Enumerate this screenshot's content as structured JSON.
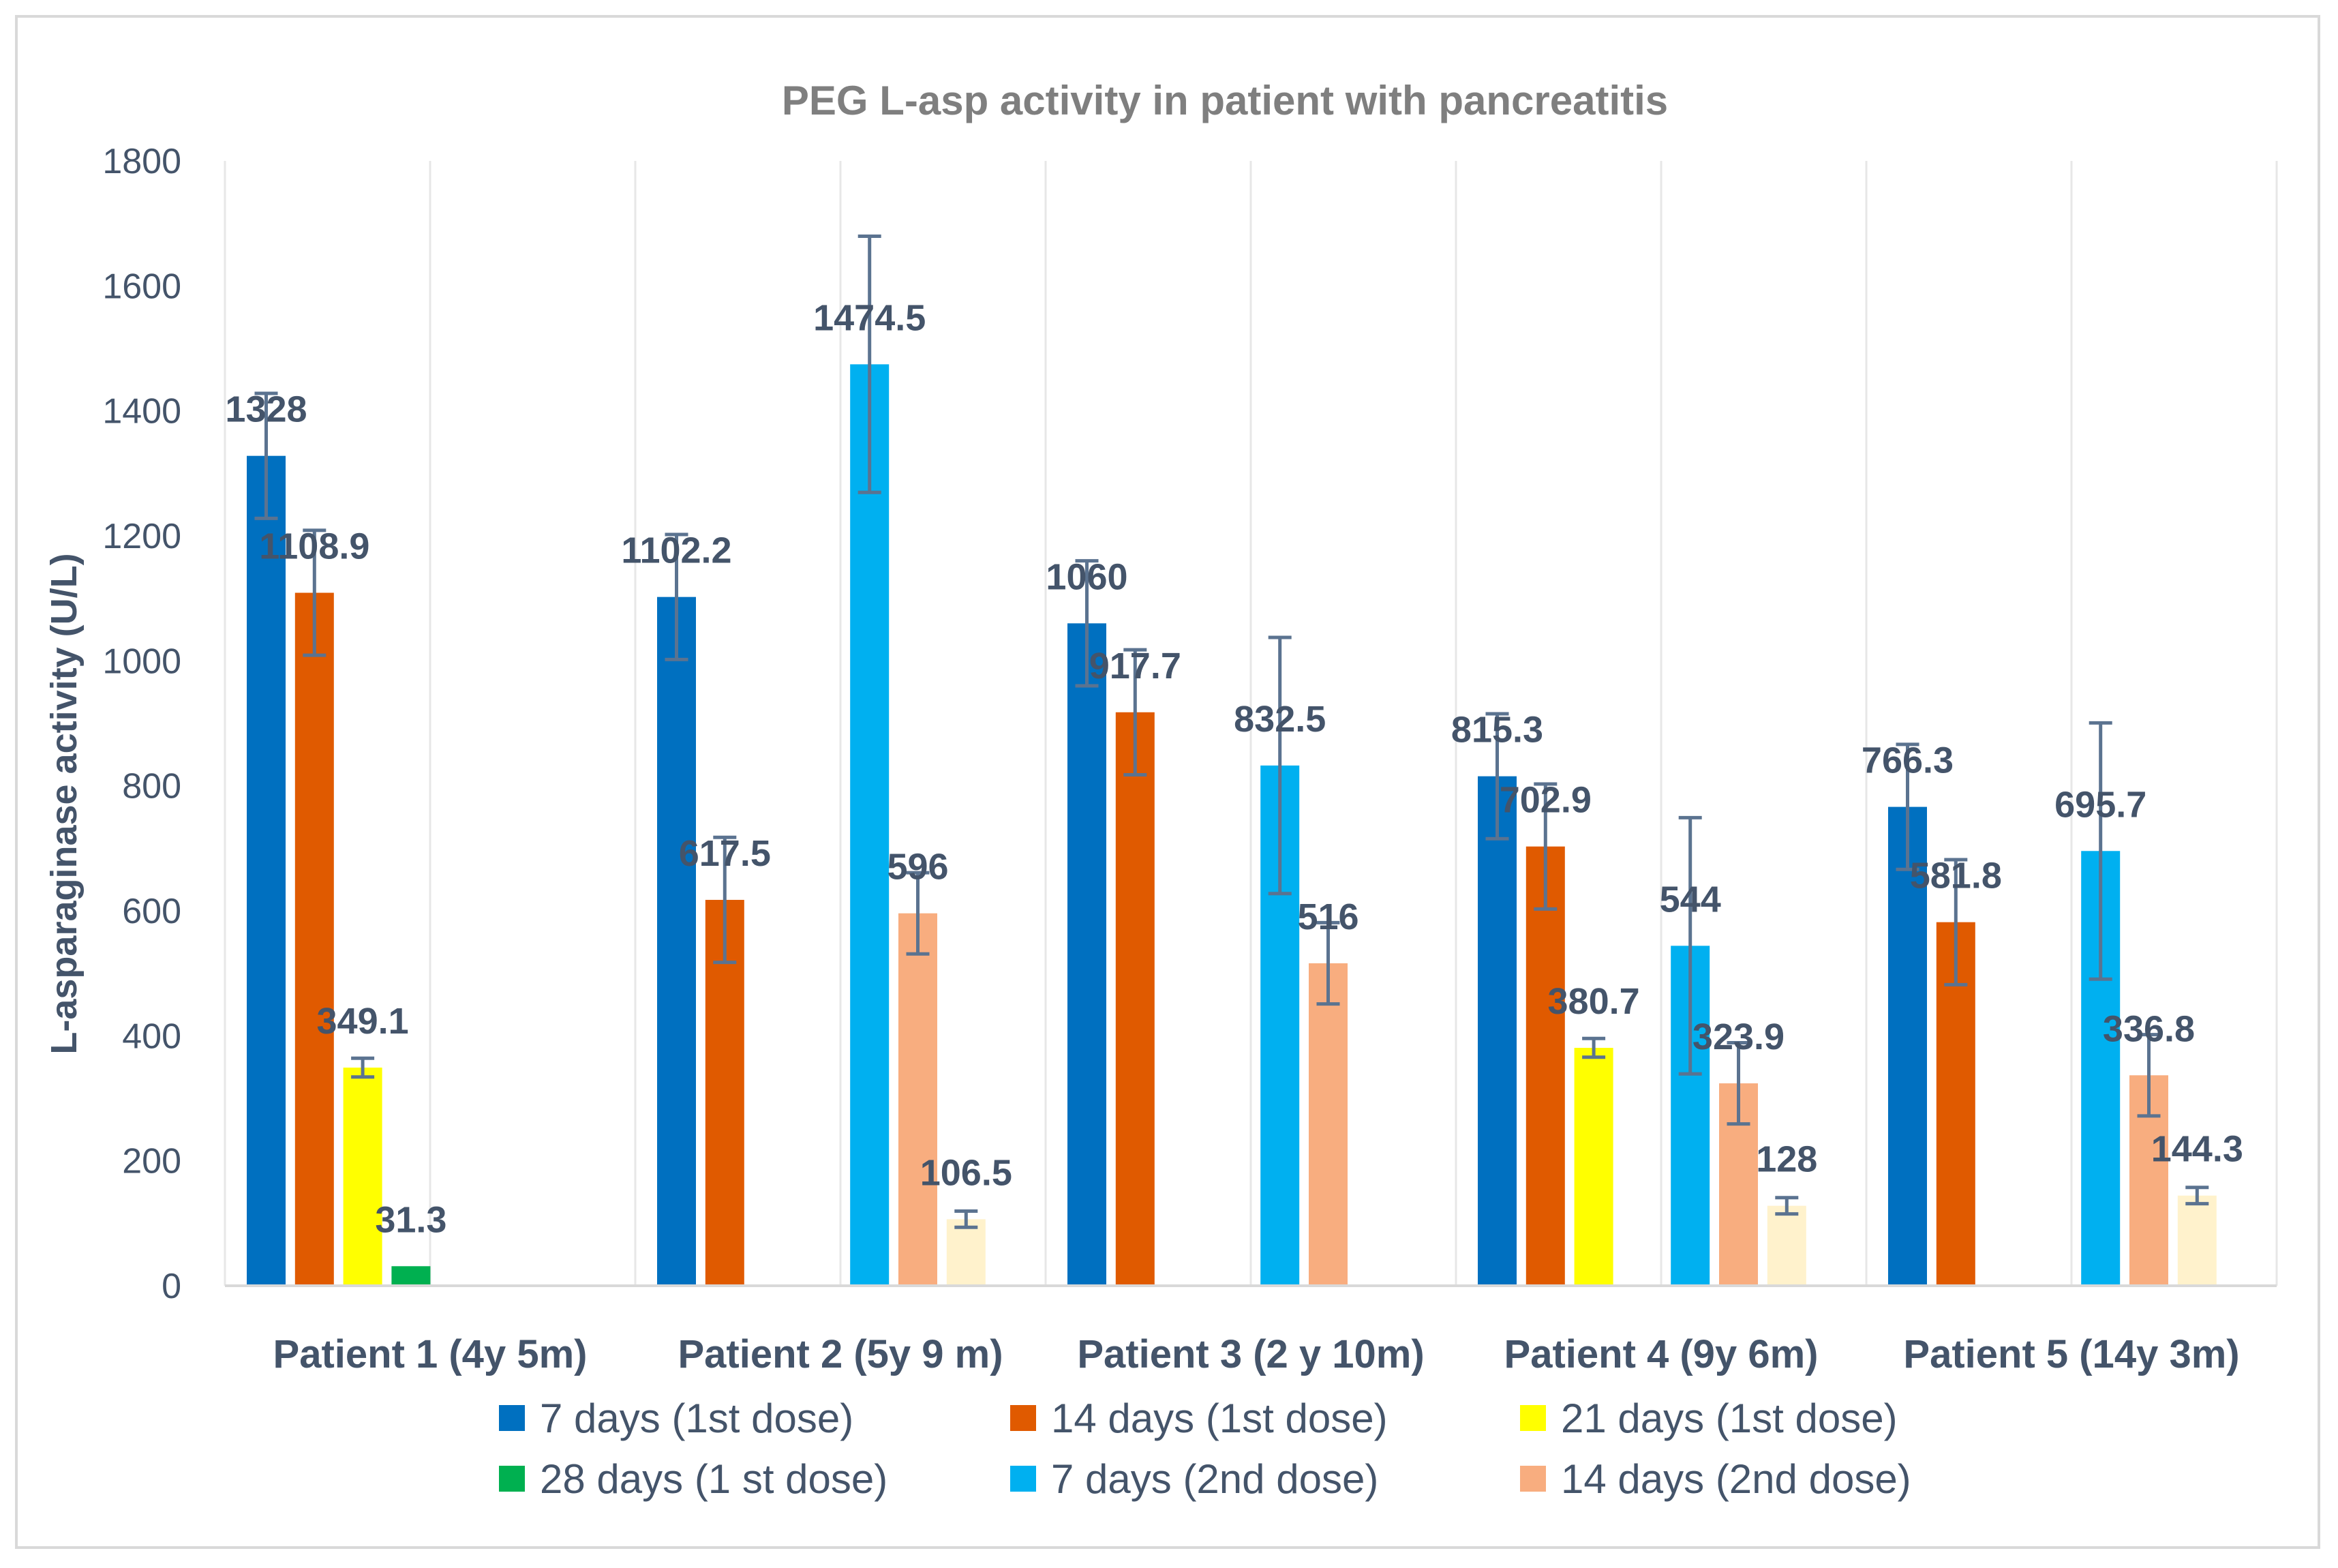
{
  "chart_data": {
    "type": "bar",
    "title": "PEG L-asp activity in patient with pancreatitis",
    "xlabel": "",
    "ylabel": "L-asparaginase activity (U/L)",
    "ylim": [
      0,
      1800
    ],
    "yticks": [
      0,
      200,
      400,
      600,
      800,
      1000,
      1200,
      1400,
      1600,
      1800
    ],
    "ytick_labels": [
      "0",
      "200",
      "400",
      "600",
      "800",
      "1000",
      "1200",
      "1400",
      "1600",
      "1800"
    ],
    "grid": true,
    "legend_position": "bottom",
    "categories": [
      "Patient 1 (4y 5m)",
      "Patient 2 (5y 9 m)",
      "Patient 3 (2 y 10m)",
      "Patient 4 (9y 6m)",
      "Patient 5 (14y 3m)"
    ],
    "series": [
      {
        "name": "7 days (1st dose)",
        "color": "#0070c0",
        "values": [
          1328,
          1102.2,
          1060,
          815.3,
          766.3
        ],
        "labels": [
          "1328",
          "1102.2",
          "1060",
          "815.3",
          "766.3"
        ],
        "errors": [
          100,
          100,
          100,
          100,
          100
        ]
      },
      {
        "name": "14 days (1st dose)",
        "color": "#e05a00",
        "values": [
          1108.9,
          617.5,
          917.7,
          702.9,
          581.8
        ],
        "labels": [
          "1108.9",
          "617.5",
          "917.7",
          "702.9",
          "581.8"
        ],
        "errors": [
          100,
          100,
          100,
          100,
          100
        ]
      },
      {
        "name": "21 days (1st dose)",
        "color": "#ffff00",
        "values": [
          349.1,
          null,
          null,
          380.7,
          null
        ],
        "labels": [
          "349.1",
          "",
          "",
          "380.7",
          ""
        ],
        "errors": [
          15,
          null,
          null,
          15,
          null
        ]
      },
      {
        "name": "28 days (1 st dose)",
        "color": "#00b050",
        "values": [
          31.3,
          null,
          null,
          null,
          null
        ],
        "labels": [
          "31.3",
          "",
          "",
          "",
          ""
        ],
        "errors": [
          null,
          null,
          null,
          null,
          null
        ]
      },
      {
        "name": "7 days (2nd dose)",
        "color": "#00b0f0",
        "values": [
          null,
          1474.5,
          832.5,
          544,
          695.7
        ],
        "labels": [
          "",
          "1474.5",
          "832.5",
          "544",
          "695.7"
        ],
        "errors": [
          null,
          205,
          205,
          205,
          205
        ]
      },
      {
        "name": "14 days (2nd dose)",
        "color": "#f8ad7f",
        "values": [
          null,
          596,
          516,
          323.9,
          336.8
        ],
        "labels": [
          "",
          "596",
          "516",
          "323.9",
          "336.8"
        ],
        "errors": [
          null,
          65,
          65,
          65,
          65
        ]
      },
      {
        "name": "",
        "color": "#fff2cc",
        "values": [
          null,
          106.5,
          null,
          128,
          144.3
        ],
        "labels": [
          "",
          "106.5",
          "",
          "128",
          "144.3"
        ],
        "errors": [
          null,
          13,
          null,
          13,
          13
        ]
      }
    ]
  }
}
